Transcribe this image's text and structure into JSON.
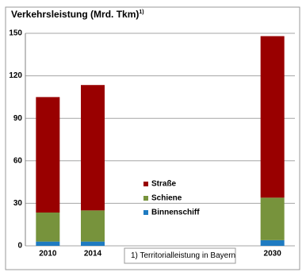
{
  "chart_data": {
    "type": "stacked_bar",
    "title": "Verkehrsleistung (Mrd. Tkm)",
    "title_note": "1)",
    "categories": [
      "2010",
      "2014",
      null,
      null,
      null,
      "2030"
    ],
    "series": [
      {
        "name": "Binnenschiff",
        "color": "#1f7bc1",
        "values": [
          3,
          3,
          null,
          null,
          null,
          4
        ]
      },
      {
        "name": "Schiene",
        "color": "#77933c",
        "values": [
          20.5,
          22,
          null,
          null,
          null,
          30
        ]
      },
      {
        "name": "Straße",
        "color": "#990000",
        "values": [
          81.5,
          88.5,
          null,
          null,
          null,
          114
        ]
      }
    ],
    "ylim": [
      0,
      150
    ],
    "yticks": [
      0,
      30,
      60,
      90,
      120,
      150
    ],
    "grid": true,
    "footnote": "1)  Territorialleistung in Bayern"
  }
}
